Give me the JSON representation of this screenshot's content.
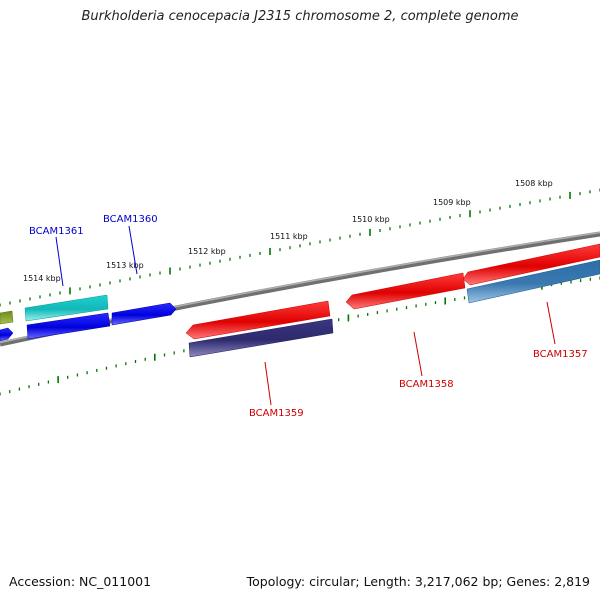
{
  "title": "Burkholderia cenocepacia J2315 chromosome 2, complete genome",
  "footer": {
    "accession": "Accession: NC_011001",
    "summary": "Topology: circular; Length: 3,217,062 bp; Genes: 2,819"
  },
  "tick_labels": [
    "1508 kbp",
    "1509 kbp",
    "1510 kbp",
    "1511 kbp",
    "1512 kbp",
    "1513 kbp",
    "1514 kbp"
  ],
  "gene_labels": [
    "BCAM1357",
    "BCAM1358",
    "BCAM1359",
    "BCAM1360",
    "BCAM1361"
  ],
  "colors": {
    "forward_strand_label": "#0000cc",
    "reverse_strand_label": "#cc0000",
    "tick_marks": "#007700",
    "backbone": "#808080"
  }
}
